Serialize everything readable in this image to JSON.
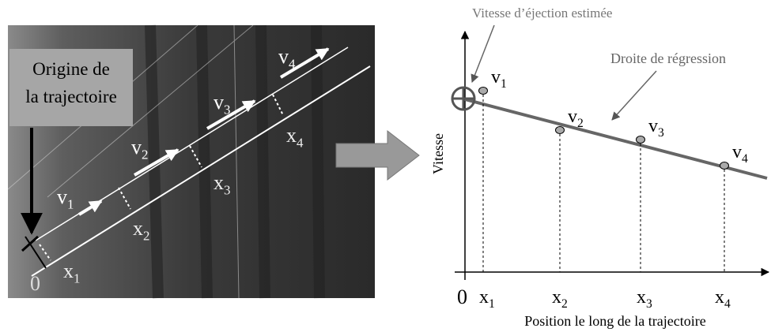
{
  "photo": {
    "origin_label": [
      "Origine de",
      "la trajectoire"
    ],
    "zero": "0",
    "velocities": [
      {
        "base": "v",
        "sub": "1"
      },
      {
        "base": "v",
        "sub": "2"
      },
      {
        "base": "v",
        "sub": "3"
      },
      {
        "base": "v",
        "sub": "4"
      }
    ],
    "positions": [
      {
        "base": "x",
        "sub": "1"
      },
      {
        "base": "x",
        "sub": "2"
      },
      {
        "base": "x",
        "sub": "3"
      },
      {
        "base": "x",
        "sub": "4"
      }
    ]
  },
  "graph": {
    "annotation_estimate": "Vitesse d’éjection estimée",
    "annotation_regression": "Droite de régression",
    "y_label": "Vitesse",
    "x_label": "Position le long de la trajectoire",
    "zero": "0",
    "velocities": [
      {
        "base": "v",
        "sub": "1"
      },
      {
        "base": "v",
        "sub": "2"
      },
      {
        "base": "v",
        "sub": "3"
      },
      {
        "base": "v",
        "sub": "4"
      }
    ],
    "positions": [
      {
        "base": "x",
        "sub": "1"
      },
      {
        "base": "x",
        "sub": "2"
      },
      {
        "base": "x",
        "sub": "3"
      },
      {
        "base": "x",
        "sub": "4"
      }
    ]
  }
}
